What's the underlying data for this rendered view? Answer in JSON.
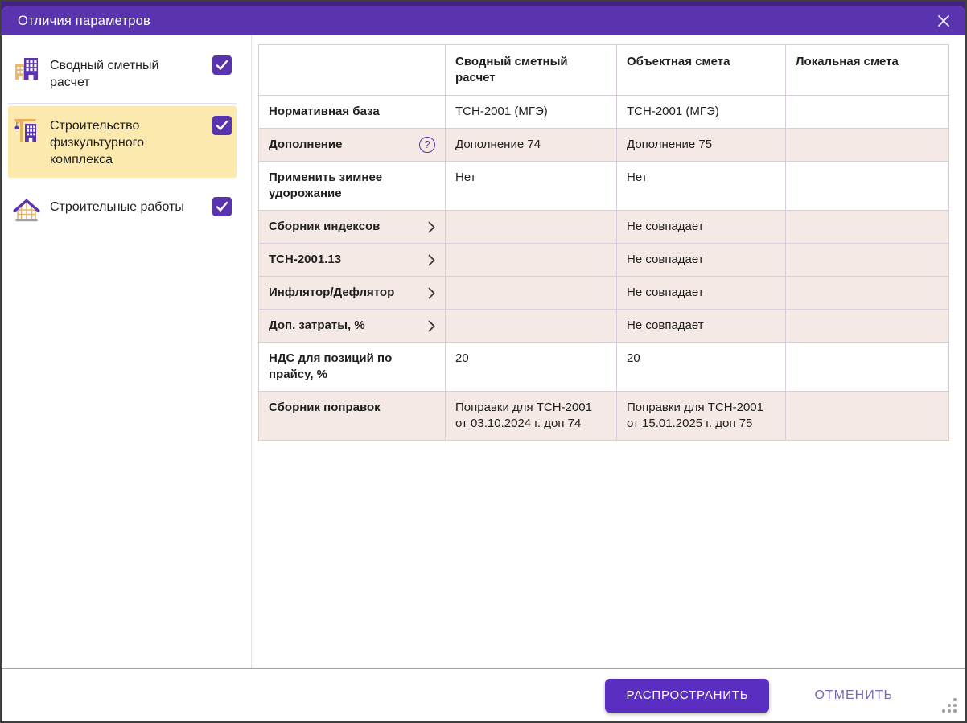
{
  "dialog": {
    "title": "Отличия параметров"
  },
  "colors": {
    "accent": "#5A34AE",
    "button": "#5A2EC0",
    "backdrop": "#44217F",
    "selected_item_bg": "#FCE9AE",
    "table_highlight_bg": "#F4E9E4"
  },
  "icons": {
    "question_mark": "?"
  },
  "sidebar": {
    "items": [
      {
        "label": "Сводный сметный расчет",
        "icon": "buildings-icon",
        "checked": true,
        "selected": false
      },
      {
        "label": "Строительство физкультурного комплекса",
        "icon": "crane-building-icon",
        "checked": true,
        "selected": true
      },
      {
        "label": "Строительные работы",
        "icon": "house-frame-icon",
        "checked": true,
        "selected": false
      }
    ]
  },
  "table": {
    "columns": [
      "",
      "Сводный сметный расчет",
      "Объектная смета",
      "Локальная смета"
    ],
    "rows": [
      {
        "label": "Нормативная база",
        "values": [
          "ТСН-2001 (МГЭ)",
          "ТСН-2001 (МГЭ)",
          ""
        ],
        "highlight": false,
        "help": false,
        "expandable": false
      },
      {
        "label": "Дополнение",
        "values": [
          "Дополнение 74",
          "Дополнение 75",
          ""
        ],
        "highlight": true,
        "help": true,
        "expandable": false
      },
      {
        "label": "Применить зимнее удорожание",
        "values": [
          "Нет",
          "Нет",
          ""
        ],
        "highlight": false,
        "help": false,
        "expandable": false
      },
      {
        "label": "Сборник индексов",
        "values": [
          "",
          "Не совпадает",
          ""
        ],
        "highlight": true,
        "help": false,
        "expandable": true
      },
      {
        "label": "ТСН-2001.13",
        "values": [
          "",
          "Не совпадает",
          ""
        ],
        "highlight": true,
        "help": false,
        "expandable": true
      },
      {
        "label": "Инфлятор/Дефлятор",
        "values": [
          "",
          "Не совпадает",
          ""
        ],
        "highlight": true,
        "help": false,
        "expandable": true
      },
      {
        "label": "Доп. затраты, %",
        "values": [
          "",
          "Не совпадает",
          ""
        ],
        "highlight": true,
        "help": false,
        "expandable": true
      },
      {
        "label": "НДС для позиций по прайсу, %",
        "values": [
          "20",
          "20",
          ""
        ],
        "highlight": false,
        "help": false,
        "expandable": false
      },
      {
        "label": "Сборник поправок",
        "values": [
          "Поправки для ТСН-2001 от 03.10.2024 г. доп 74",
          "Поправки для ТСН-2001 от 15.01.2025 г. доп 75",
          ""
        ],
        "highlight": true,
        "help": false,
        "expandable": false
      }
    ]
  },
  "footer": {
    "apply_label": "РАСПРОСТРАНИТЬ",
    "cancel_label": "ОТМЕНИТЬ"
  }
}
